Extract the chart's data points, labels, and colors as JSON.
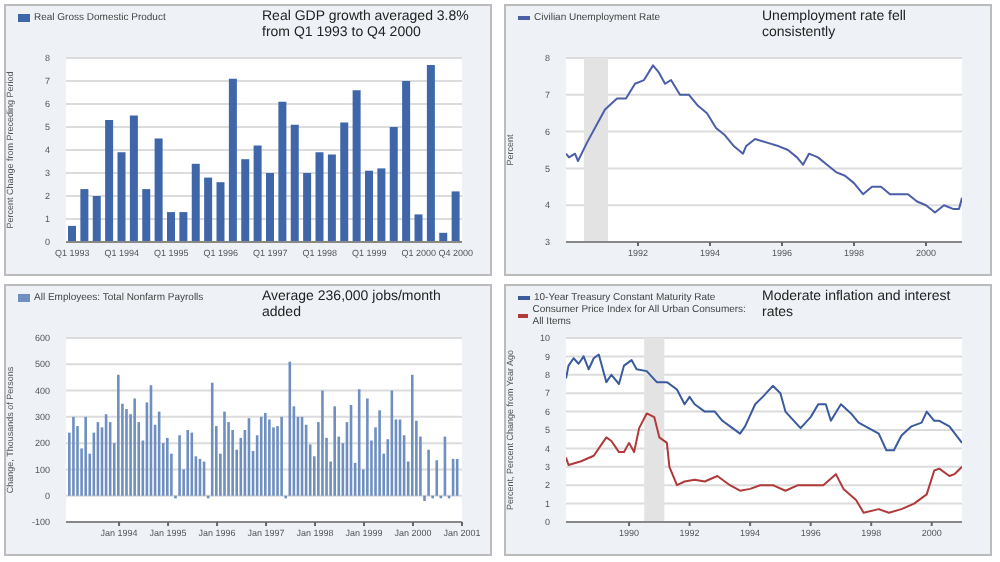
{
  "chart_data": [
    {
      "type": "bar",
      "title": "Real GDP growth averaged 3.8% from Q1 1993 to Q4 2000",
      "ylabel": "Percent Change from Preceding Period",
      "legend": "top left",
      "grid": "y",
      "categories": [
        "Q1 1993",
        null,
        null,
        null,
        "Q1 1994",
        null,
        null,
        null,
        "Q1 1995",
        null,
        null,
        null,
        "Q1 1996",
        null,
        null,
        null,
        "Q1 1997",
        null,
        null,
        null,
        "Q1 1998",
        null,
        null,
        null,
        "Q1 1999",
        null,
        null,
        null,
        "Q1 2000",
        null,
        null,
        "Q4 2000"
      ],
      "series": [
        {
          "name": "Real Gross Domestic Product",
          "color": "#3f66a8",
          "values": [
            0.7,
            2.3,
            2.0,
            5.3,
            3.9,
            5.5,
            2.3,
            4.5,
            1.3,
            1.3,
            3.4,
            2.8,
            2.6,
            7.1,
            3.6,
            4.2,
            3.0,
            6.1,
            5.1,
            3.0,
            3.9,
            3.8,
            5.2,
            6.6,
            3.1,
            3.2,
            5.0,
            7.0,
            1.2,
            7.7,
            0.4,
            2.2
          ]
        }
      ],
      "ylim": [
        0,
        8
      ],
      "yticks": [
        0,
        1,
        2,
        3,
        4,
        5,
        6,
        7,
        8
      ]
    },
    {
      "type": "line",
      "title": "Unemployment rate fell consistently",
      "ylabel": "Percent",
      "legend": "top left",
      "grid": "y",
      "series": [
        {
          "name": "Civilian Unemployment Rate",
          "color": "#4b5fa8",
          "x": [
            "1990-01",
            "1990-02",
            "1990-04",
            "1990-05",
            "1990-08",
            "1990-12",
            "1991-02",
            "1991-06",
            "1991-09",
            "1991-12",
            "1992-03",
            "1992-06",
            "1992-08",
            "1992-10",
            "1992-12",
            "1993-03",
            "1993-06",
            "1993-09",
            "1993-12",
            "1994-03",
            "1994-06",
            "1994-09",
            "1994-12",
            "1995-01",
            "1995-04",
            "1995-08",
            "1995-12",
            "1996-03",
            "1996-06",
            "1996-08",
            "1996-10",
            "1997-01",
            "1997-04",
            "1997-07",
            "1997-10",
            "1998-01",
            "1998-04",
            "1998-07",
            "1998-10",
            "1999-01",
            "1999-04",
            "1999-07",
            "1999-10",
            "2000-01",
            "2000-04",
            "2000-07",
            "2000-10",
            "2000-12",
            "2001-01"
          ],
          "values": [
            5.4,
            5.3,
            5.4,
            5.2,
            5.7,
            6.3,
            6.6,
            6.9,
            6.9,
            7.3,
            7.4,
            7.8,
            7.6,
            7.3,
            7.4,
            7.0,
            7.0,
            6.7,
            6.5,
            6.1,
            5.9,
            5.6,
            5.4,
            5.6,
            5.8,
            5.7,
            5.6,
            5.5,
            5.3,
            5.1,
            5.4,
            5.3,
            5.1,
            4.9,
            4.8,
            4.6,
            4.3,
            4.5,
            4.5,
            4.3,
            4.3,
            4.3,
            4.1,
            4.0,
            3.8,
            4.0,
            3.9,
            3.9,
            4.2
          ]
        }
      ],
      "xlim": [
        "1990-01",
        "2001-01"
      ],
      "xticks": [
        "1992",
        "1994",
        "1996",
        "1998",
        "2000"
      ],
      "ylim": [
        3,
        8
      ],
      "yticks": [
        3,
        4,
        5,
        6,
        7,
        8
      ],
      "bands": [
        {
          "axis": "x",
          "from": "1990-07",
          "to": "1991-03",
          "color": "#e3e3e3"
        }
      ]
    },
    {
      "type": "bar",
      "title": "Average 236,000 jobs/month added",
      "ylabel": "Change, Thousands of Persons",
      "legend": "top left",
      "grid": "y",
      "series": [
        {
          "name": "All Employees: Total Nonfarm Payrolls",
          "color": "#6e8fc0",
          "x": [
            "1993-01",
            "1993-02",
            "1993-03",
            "1993-04",
            "1993-05",
            "1993-06",
            "1993-07",
            "1993-08",
            "1993-09",
            "1993-10",
            "1993-11",
            "1993-12",
            "1994-01",
            "1994-02",
            "1994-03",
            "1994-04",
            "1994-05",
            "1994-06",
            "1994-07",
            "1994-08",
            "1994-09",
            "1994-10",
            "1994-11",
            "1994-12",
            "1995-01",
            "1995-02",
            "1995-03",
            "1995-04",
            "1995-05",
            "1995-06",
            "1995-07",
            "1995-08",
            "1995-09",
            "1995-10",
            "1995-11",
            "1995-12",
            "1996-01",
            "1996-02",
            "1996-03",
            "1996-04",
            "1996-05",
            "1996-06",
            "1996-07",
            "1996-08",
            "1996-09",
            "1996-10",
            "1996-11",
            "1996-12",
            "1997-01",
            "1997-02",
            "1997-03",
            "1997-04",
            "1997-05",
            "1997-06",
            "1997-07",
            "1997-08",
            "1997-09",
            "1997-10",
            "1997-11",
            "1997-12",
            "1998-01",
            "1998-02",
            "1998-03",
            "1998-04",
            "1998-05",
            "1998-06",
            "1998-07",
            "1998-08",
            "1998-09",
            "1998-10",
            "1998-11",
            "1998-12",
            "1999-01",
            "1999-02",
            "1999-03",
            "1999-04",
            "1999-05",
            "1999-06",
            "1999-07",
            "1999-08",
            "1999-09",
            "1999-10",
            "1999-11",
            "1999-12",
            "2000-01",
            "2000-02",
            "2000-03",
            "2000-04",
            "2000-05",
            "2000-06",
            "2000-07",
            "2000-08",
            "2000-09",
            "2000-10",
            "2000-11",
            "2000-12"
          ],
          "values": [
            240,
            300,
            265,
            180,
            300,
            160,
            240,
            280,
            260,
            310,
            280,
            200,
            460,
            350,
            330,
            310,
            370,
            280,
            210,
            355,
            420,
            270,
            320,
            200,
            220,
            160,
            -10,
            230,
            100,
            250,
            240,
            150,
            140,
            130,
            -10,
            430,
            265,
            160,
            320,
            280,
            250,
            175,
            220,
            250,
            295,
            170,
            230,
            300,
            315,
            290,
            260,
            265,
            300,
            -10,
            510,
            340,
            300,
            300,
            270,
            195,
            150,
            280,
            400,
            220,
            130,
            340,
            225,
            200,
            280,
            345,
            125,
            405,
            100,
            370,
            210,
            260,
            325,
            160,
            215,
            400,
            290,
            290,
            230,
            130,
            460,
            285,
            225,
            -20,
            175,
            -10,
            135,
            -10,
            225,
            -10,
            140,
            140
          ]
        }
      ],
      "xlim": [
        "1992-12",
        "2001-01"
      ],
      "xticks": [
        {
          "value": "1994-01",
          "label": "Jan 1994"
        },
        {
          "value": "1995-01",
          "label": "Jan 1995"
        },
        {
          "value": "1996-01",
          "label": "Jan 1996"
        },
        {
          "value": "1997-01",
          "label": "Jan 1997"
        },
        {
          "value": "1998-01",
          "label": "Jan 1998"
        },
        {
          "value": "1999-01",
          "label": "Jan 1999"
        },
        {
          "value": "2000-01",
          "label": "Jan 2000"
        },
        {
          "value": "2001-01",
          "label": "Jan 2001"
        }
      ],
      "ylim": [
        -100,
        600
      ],
      "yticks": [
        -100,
        0,
        100,
        200,
        300,
        400,
        500,
        600
      ]
    },
    {
      "type": "line",
      "title": "Moderate inflation and interest rates",
      "ylabel": "Percent, Percent Change from Year Ago",
      "legend": "top left",
      "grid": "y",
      "series": [
        {
          "name": "10-Year Treasury Constant Maturity Rate",
          "color": "#3a5a9e",
          "x": [
            "1987-12",
            "1988-01",
            "1988-03",
            "1988-05",
            "1988-07",
            "1988-09",
            "1988-11",
            "1989-01",
            "1989-04",
            "1989-06",
            "1989-09",
            "1989-11",
            "1990-02",
            "1990-04",
            "1990-08",
            "1990-12",
            "1991-04",
            "1991-08",
            "1991-11",
            "1992-01",
            "1992-03",
            "1992-07",
            "1992-11",
            "1993-02",
            "1993-06",
            "1993-09",
            "1993-11",
            "1994-03",
            "1994-06",
            "1994-10",
            "1995-01",
            "1995-03",
            "1995-05",
            "1995-09",
            "1996-01",
            "1996-04",
            "1996-07",
            "1996-09",
            "1997-01",
            "1997-05",
            "1997-08",
            "1997-12",
            "1998-04",
            "1998-07",
            "1998-10",
            "1999-01",
            "1999-05",
            "1999-09",
            "1999-11",
            "2000-02",
            "2000-04",
            "2000-08",
            "2001-01"
          ],
          "values": [
            7.8,
            8.5,
            8.9,
            8.6,
            9.0,
            8.3,
            8.9,
            9.1,
            7.6,
            8.0,
            7.5,
            8.5,
            8.8,
            8.3,
            8.2,
            7.6,
            7.6,
            7.2,
            6.4,
            6.8,
            6.4,
            6.0,
            6.0,
            5.5,
            5.1,
            4.8,
            5.2,
            6.4,
            6.8,
            7.4,
            7.0,
            6.0,
            5.7,
            5.1,
            5.7,
            6.4,
            6.4,
            5.5,
            6.4,
            5.9,
            5.4,
            5.1,
            4.8,
            3.9,
            3.9,
            4.7,
            5.2,
            5.4,
            6.0,
            5.5,
            5.5,
            5.2,
            4.3
          ]
        },
        {
          "name": "Consumer Price Index for All Urban Consumers: All Items",
          "color": "#b03a3a",
          "x": [
            "1987-12",
            "1988-01",
            "1988-06",
            "1988-11",
            "1989-04",
            "1989-06",
            "1989-09",
            "1989-11",
            "1990-01",
            "1990-03",
            "1990-05",
            "1990-08",
            "1990-11",
            "1991-01",
            "1991-04",
            "1991-05",
            "1991-08",
            "1991-11",
            "1992-03",
            "1992-07",
            "1992-12",
            "1993-05",
            "1993-09",
            "1994-01",
            "1994-05",
            "1994-10",
            "1995-03",
            "1995-08",
            "1996-01",
            "1996-06",
            "1996-11",
            "1997-02",
            "1997-07",
            "1997-10",
            "1998-04",
            "1998-08",
            "1999-01",
            "1999-06",
            "1999-11",
            "2000-02",
            "2000-04",
            "2000-08",
            "2000-10",
            "2001-01"
          ],
          "values": [
            3.5,
            3.1,
            3.3,
            3.6,
            4.6,
            4.4,
            3.8,
            3.8,
            4.3,
            3.8,
            5.1,
            5.9,
            5.7,
            4.6,
            4.3,
            3.0,
            2.0,
            2.2,
            2.3,
            2.2,
            2.5,
            2.0,
            1.7,
            1.8,
            2.0,
            2.0,
            1.7,
            2.0,
            2.0,
            2.0,
            2.6,
            1.8,
            1.2,
            0.5,
            0.7,
            0.5,
            0.7,
            1.0,
            1.5,
            2.8,
            2.9,
            2.5,
            2.6,
            3.0
          ]
        }
      ],
      "xlim": [
        "1987-12",
        "2001-01"
      ],
      "xticks": [
        "1990",
        "1992",
        "1994",
        "1996",
        "1998",
        "2000"
      ],
      "ylim": [
        0,
        10
      ],
      "yticks": [
        0,
        1,
        2,
        3,
        4,
        5,
        6,
        7,
        8,
        9,
        10
      ],
      "bands": [
        {
          "axis": "x",
          "from": "1990-07",
          "to": "1991-03",
          "color": "#e3e3e3"
        }
      ]
    }
  ]
}
